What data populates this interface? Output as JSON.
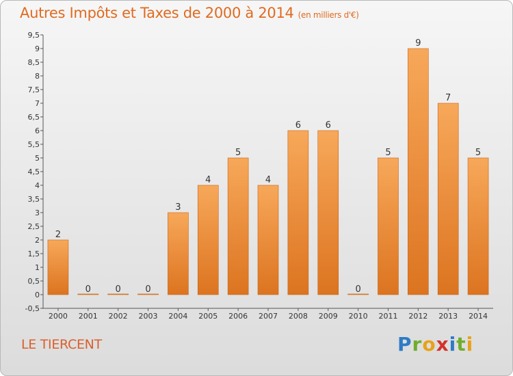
{
  "title": "Autres Impôts et Taxes de 2000 à 2014",
  "subtitle": "(en milliers d'€)",
  "commune": "LE TIERCENT",
  "logo": {
    "p": "P",
    "r": "r",
    "o": "o",
    "x": "x",
    "i": "i",
    "t": "t",
    "i2": "i"
  },
  "colors": {
    "bar_top": "#f7a85a",
    "bar_bottom": "#e07a20",
    "title": "#e06a20"
  },
  "chart_data": {
    "type": "bar",
    "categories": [
      "2000",
      "2001",
      "2002",
      "2003",
      "2004",
      "2005",
      "2006",
      "2007",
      "2008",
      "2009",
      "2010",
      "2011",
      "2012",
      "2013",
      "2014"
    ],
    "values": [
      2,
      0,
      0,
      0,
      3,
      4,
      5,
      4,
      6,
      6,
      0,
      5,
      9,
      7,
      5
    ],
    "ylim": [
      -0.5,
      9.5
    ],
    "yticks": [
      "-0,5",
      "0",
      "0,5",
      "1",
      "1,5",
      "2",
      "2,5",
      "3",
      "3,5",
      "4",
      "4,5",
      "5",
      "5,5",
      "6",
      "6,5",
      "7",
      "7,5",
      "8",
      "8,5",
      "9",
      "9,5"
    ],
    "grid": false
  }
}
